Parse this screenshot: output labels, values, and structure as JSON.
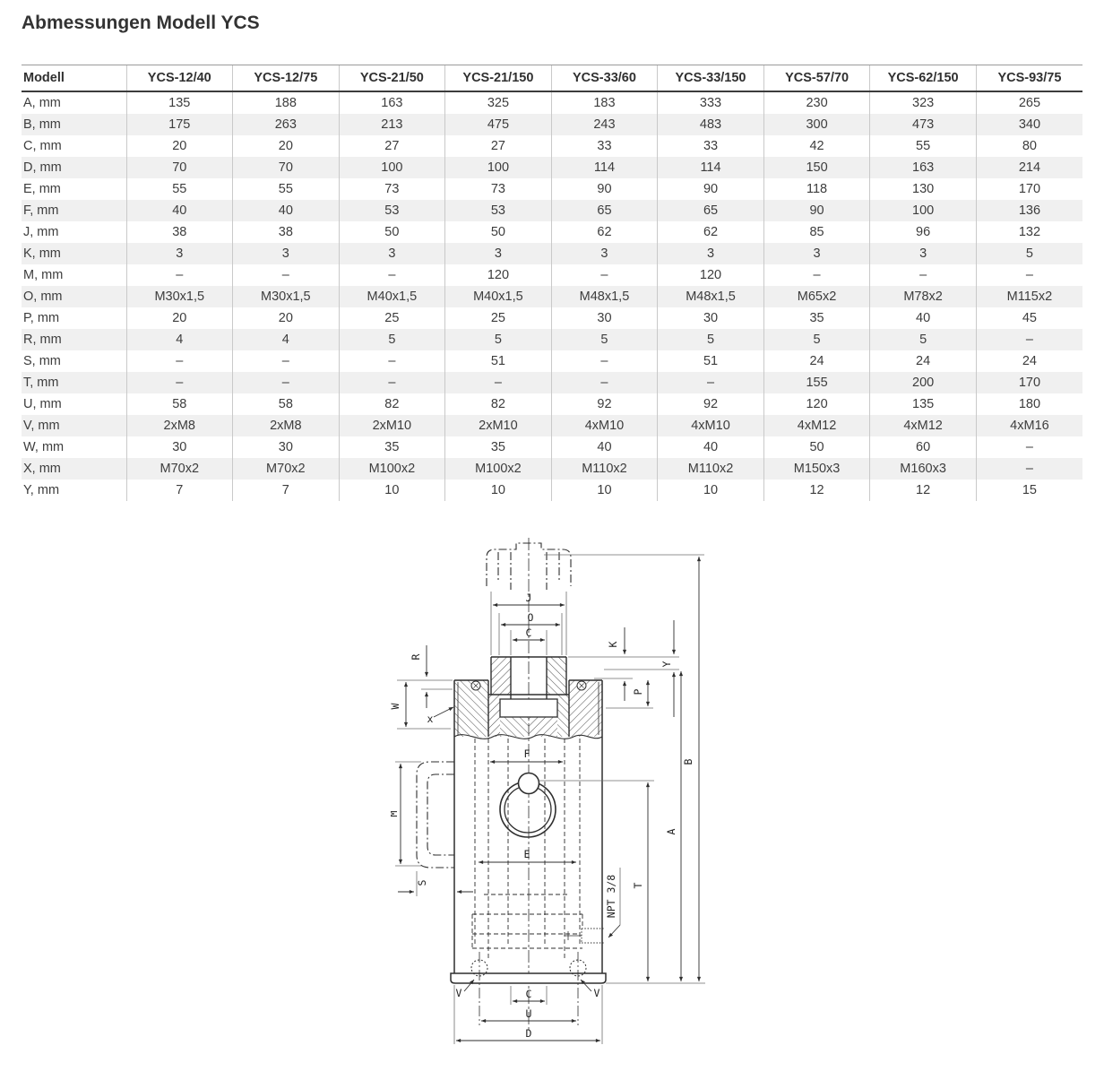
{
  "title": "Abmessungen Modell YCS",
  "table": {
    "columns": [
      "Modell",
      "YCS-12/40",
      "YCS-12/75",
      "YCS-21/50",
      "YCS-21/150",
      "YCS-33/60",
      "YCS-33/150",
      "YCS-57/70",
      "YCS-62/150",
      "YCS-93/75"
    ],
    "rows": [
      {
        "label": "A, mm",
        "values": [
          "135",
          "188",
          "163",
          "325",
          "183",
          "333",
          "230",
          "323",
          "265"
        ]
      },
      {
        "label": "B, mm",
        "values": [
          "175",
          "263",
          "213",
          "475",
          "243",
          "483",
          "300",
          "473",
          "340"
        ]
      },
      {
        "label": "C, mm",
        "values": [
          "20",
          "20",
          "27",
          "27",
          "33",
          "33",
          "42",
          "55",
          "80"
        ]
      },
      {
        "label": "D, mm",
        "values": [
          "70",
          "70",
          "100",
          "100",
          "114",
          "114",
          "150",
          "163",
          "214"
        ]
      },
      {
        "label": "E, mm",
        "values": [
          "55",
          "55",
          "73",
          "73",
          "90",
          "90",
          "118",
          "130",
          "170"
        ]
      },
      {
        "label": "F, mm",
        "values": [
          "40",
          "40",
          "53",
          "53",
          "65",
          "65",
          "90",
          "100",
          "136"
        ]
      },
      {
        "label": "J, mm",
        "values": [
          "38",
          "38",
          "50",
          "50",
          "62",
          "62",
          "85",
          "96",
          "132"
        ]
      },
      {
        "label": "K, mm",
        "values": [
          "3",
          "3",
          "3",
          "3",
          "3",
          "3",
          "3",
          "3",
          "5"
        ]
      },
      {
        "label": "M, mm",
        "values": [
          "–",
          "–",
          "–",
          "120",
          "–",
          "120",
          "–",
          "–",
          "–"
        ]
      },
      {
        "label": "O, mm",
        "values": [
          "M30x1,5",
          "M30x1,5",
          "M40x1,5",
          "M40x1,5",
          "M48x1,5",
          "M48x1,5",
          "M65x2",
          "M78x2",
          "M115x2"
        ]
      },
      {
        "label": "P, mm",
        "values": [
          "20",
          "20",
          "25",
          "25",
          "30",
          "30",
          "35",
          "40",
          "45"
        ]
      },
      {
        "label": "R, mm",
        "values": [
          "4",
          "4",
          "5",
          "5",
          "5",
          "5",
          "5",
          "5",
          "–"
        ]
      },
      {
        "label": "S, mm",
        "values": [
          "–",
          "–",
          "–",
          "51",
          "–",
          "51",
          "24",
          "24",
          "24"
        ]
      },
      {
        "label": "T, mm",
        "values": [
          "–",
          "–",
          "–",
          "–",
          "–",
          "–",
          "155",
          "200",
          "170"
        ]
      },
      {
        "label": "U, mm",
        "values": [
          "58",
          "58",
          "82",
          "82",
          "92",
          "92",
          "120",
          "135",
          "180"
        ]
      },
      {
        "label": "V, mm",
        "values": [
          "2xM8",
          "2xM8",
          "2xM10",
          "2xM10",
          "4xM10",
          "4xM10",
          "4xM12",
          "4xM12",
          "4xM16"
        ]
      },
      {
        "label": "W, mm",
        "values": [
          "30",
          "30",
          "35",
          "35",
          "40",
          "40",
          "50",
          "60",
          "–"
        ]
      },
      {
        "label": "X, mm",
        "values": [
          "M70x2",
          "M70x2",
          "M100x2",
          "M100x2",
          "M110x2",
          "M110x2",
          "M150x3",
          "M160x3",
          "–"
        ]
      },
      {
        "label": "Y, mm",
        "values": [
          "7",
          "7",
          "10",
          "10",
          "10",
          "10",
          "12",
          "12",
          "15"
        ]
      }
    ]
  },
  "drawing": {
    "labels": {
      "J": "J",
      "O": "O",
      "C_top": "C",
      "K": "K",
      "Y": "Y",
      "P": "P",
      "R": "R",
      "W": "W",
      "X": "x",
      "F": "F",
      "M": "M",
      "E": "E",
      "S": "S",
      "NPT": "NPT 3/8",
      "T": "T",
      "A": "A",
      "B": "B",
      "V_left": "V",
      "V_right": "V",
      "C_bottom": "C",
      "U": "U",
      "D": "D"
    }
  },
  "colors": {
    "stripe": "#f0f0f0",
    "rule_light": "#c9c9c9",
    "rule_dark": "#3c3c3c",
    "ink": "#2e2e2e",
    "text": "#3a3a3a"
  }
}
